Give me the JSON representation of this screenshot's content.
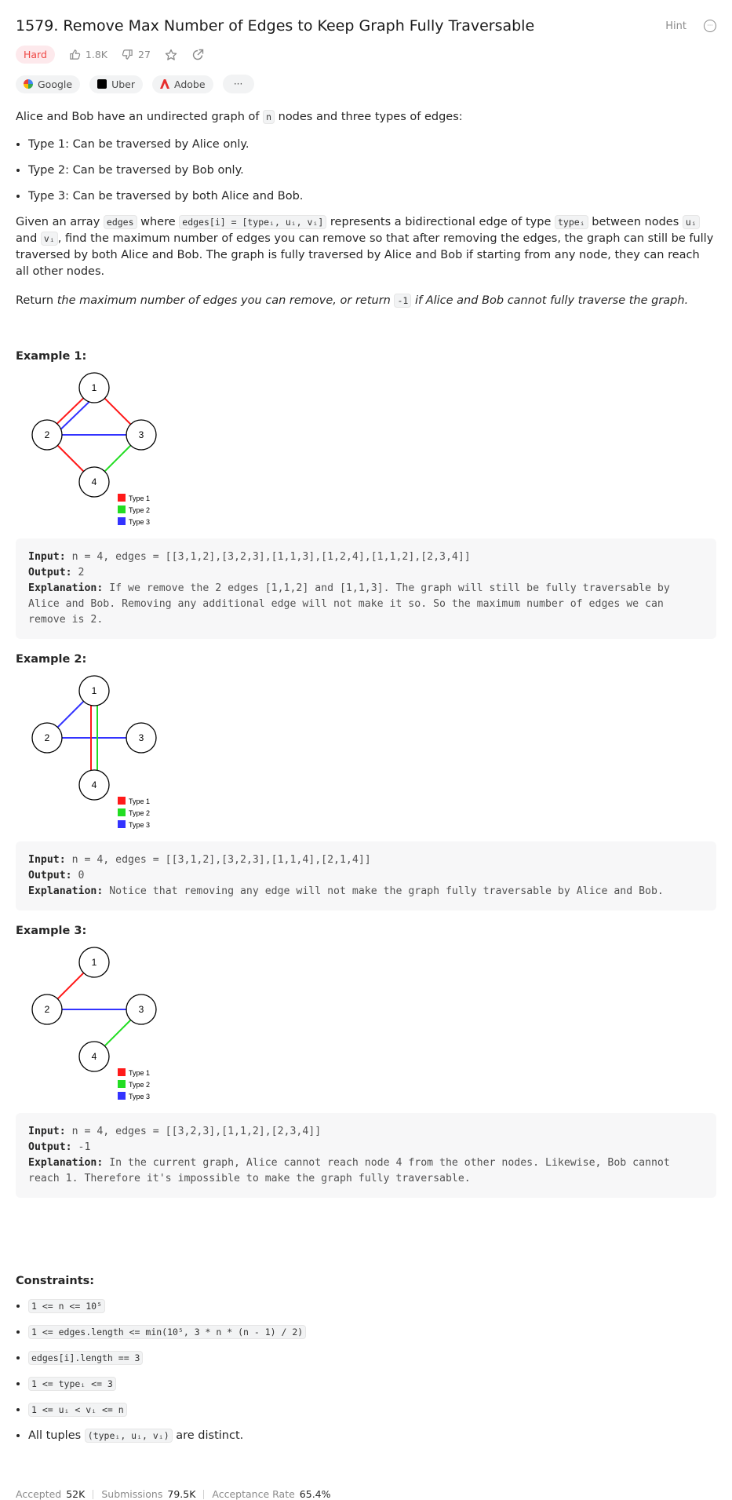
{
  "header": {
    "title": "1579. Remove Max Number of Edges to Keep Graph Fully Traversable",
    "hint_label": "Hint",
    "difficulty": "Hard",
    "likes": "1.8K",
    "dislikes": "27"
  },
  "tags": [
    {
      "label": "Google"
    },
    {
      "label": "Uber"
    },
    {
      "label": "Adobe"
    }
  ],
  "tags_more": "···",
  "description": {
    "p1_pre": "Alice and Bob have an undirected graph of ",
    "p1_code": "n",
    "p1_post": " nodes and three types of edges:",
    "types": [
      "Type 1: Can be traversed by Alice only.",
      "Type 2: Can be traversed by Bob only.",
      "Type 3: Can be traversed by both Alice and Bob."
    ],
    "p2_a": "Given an array ",
    "p2_code_edges": "edges",
    "p2_b": " where ",
    "p2_code_def": "edges[i] = [typeᵢ, uᵢ, vᵢ]",
    "p2_c": " represents a bidirectional edge of type ",
    "p2_code_type": "typeᵢ",
    "p2_d": " between nodes ",
    "p2_code_u": "uᵢ",
    "p2_e": " and ",
    "p2_code_v": "vᵢ",
    "p2_f": ", find the maximum number of edges you can remove so that after removing the edges, the graph can still be fully traversed by both Alice and Bob. The graph is fully traversed by Alice and Bob if starting from any node, they can reach all other nodes.",
    "p3_a": "Return ",
    "p3_em1": "the maximum number of edges you can remove, or return ",
    "p3_code": "-1",
    "p3_em2": " if Alice and Bob cannot fully traverse the graph."
  },
  "legend": {
    "type1": "Type 1",
    "type2": "Type 2",
    "type3": "Type 3"
  },
  "colors": {
    "type1": "#ff1a1a",
    "type2": "#22dd22",
    "type3": "#3333ff",
    "accent_hard": "#ef4743"
  },
  "examples": [
    {
      "title": "Example 1:",
      "nodes": [
        "1",
        "2",
        "3",
        "4"
      ],
      "input_label": "Input:",
      "input": "n = 4, edges = [[3,1,2],[3,2,3],[1,1,3],[1,2,4],[1,1,2],[2,3,4]]",
      "output_label": "Output:",
      "output": "2",
      "explanation_label": "Explanation:",
      "explanation": "If we remove the 2 edges [1,1,2] and [1,1,3]. The graph will still be fully traversable by Alice and Bob. Removing any additional edge will not make it so. So the maximum number of edges we can remove is 2."
    },
    {
      "title": "Example 2:",
      "nodes": [
        "1",
        "2",
        "3",
        "4"
      ],
      "input_label": "Input:",
      "input": "n = 4, edges = [[3,1,2],[3,2,3],[1,1,4],[2,1,4]]",
      "output_label": "Output:",
      "output": "0",
      "explanation_label": "Explanation:",
      "explanation": "Notice that removing any edge will not make the graph fully traversable by Alice and Bob."
    },
    {
      "title": "Example 3:",
      "nodes": [
        "1",
        "2",
        "3",
        "4"
      ],
      "input_label": "Input:",
      "input": "n = 4, edges = [[3,2,3],[1,1,2],[2,3,4]]",
      "output_label": "Output:",
      "output": "-1",
      "explanation_label": "Explanation:",
      "explanation": "In the current graph, Alice cannot reach node 4 from the other nodes. Likewise, Bob cannot reach 1. Therefore it's impossible to make the graph fully traversable."
    }
  ],
  "constraints": {
    "title": "Constraints:",
    "items": [
      {
        "code": "1 <= n <= 10⁵",
        "text": ""
      },
      {
        "code": "1 <= edges.length <= min(10⁵, 3 * n * (n - 1) / 2)",
        "text": ""
      },
      {
        "code": "edges[i].length == 3",
        "text": ""
      },
      {
        "code": "1 <= typeᵢ <= 3",
        "text": ""
      },
      {
        "code": "1 <= uᵢ < vᵢ <= n",
        "text": ""
      }
    ],
    "last_pre": "All tuples ",
    "last_code": "(typeᵢ, uᵢ, vᵢ)",
    "last_post": " are distinct."
  },
  "stats": {
    "accepted_label": "Accepted",
    "accepted": "52K",
    "submissions_label": "Submissions",
    "submissions": "79.5K",
    "acceptance_label": "Acceptance Rate",
    "acceptance": "65.4%"
  }
}
